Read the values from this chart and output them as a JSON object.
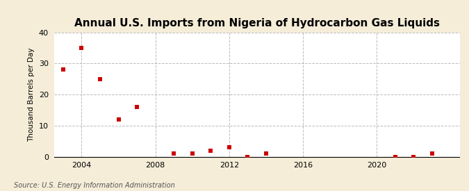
{
  "title": "Annual U.S. Imports from Nigeria of Hydrocarbon Gas Liquids",
  "ylabel": "Thousand Barrels per Day",
  "source": "Source: U.S. Energy Information Administration",
  "background_color": "#f5edd8",
  "plot_background_color": "#ffffff",
  "data": [
    [
      2003,
      28
    ],
    [
      2004,
      35
    ],
    [
      2005,
      25
    ],
    [
      2006,
      12
    ],
    [
      2007,
      16
    ],
    [
      2009,
      1
    ],
    [
      2010,
      1
    ],
    [
      2011,
      2
    ],
    [
      2012,
      3
    ],
    [
      2013,
      0
    ],
    [
      2014,
      1
    ],
    [
      2021,
      0
    ],
    [
      2022,
      0
    ],
    [
      2023,
      1
    ]
  ],
  "marker_color": "#cc0000",
  "marker_size": 4,
  "xlim": [
    2002.5,
    2024.5
  ],
  "ylim": [
    0,
    40
  ],
  "yticks": [
    0,
    10,
    20,
    30,
    40
  ],
  "xticks": [
    2004,
    2008,
    2012,
    2016,
    2020
  ],
  "grid_color": "#aaaaaa",
  "grid_style": "--",
  "grid_alpha": 0.8,
  "vgrid_xticks": [
    2004,
    2008,
    2012,
    2016,
    2020
  ],
  "title_fontsize": 11,
  "label_fontsize": 7.5,
  "tick_fontsize": 8,
  "source_fontsize": 7
}
